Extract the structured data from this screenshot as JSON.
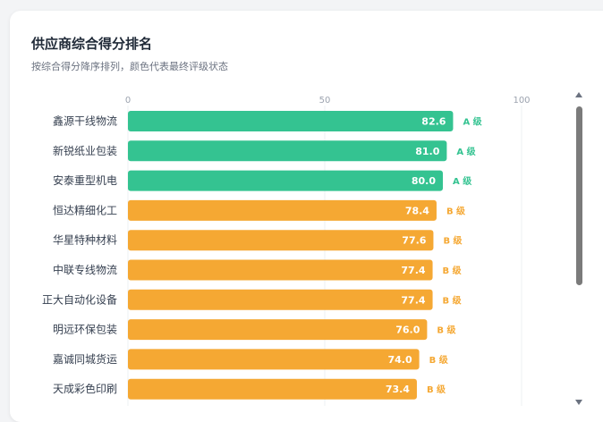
{
  "card": {
    "title": "供应商综合得分排名",
    "subtitle": "按综合得分降序排列，颜色代表最终评级状态"
  },
  "colors": {
    "A": "#34c391",
    "B": "#f5a833",
    "grid": "#eef0f3",
    "tick": "#9ca3af",
    "label": "#374151"
  },
  "chart_data": {
    "type": "bar",
    "orientation": "horizontal",
    "title": "供应商综合得分排名",
    "subtitle": "按综合得分降序排列，颜色代表最终评级状态",
    "xlim": [
      0,
      100
    ],
    "xticks": [
      0,
      50,
      100
    ],
    "grid": true,
    "categories": [
      "鑫源干线物流",
      "新锐纸业包装",
      "安泰重型机电",
      "恒达精细化工",
      "华星特种材料",
      "中联专线物流",
      "正大自动化设备",
      "明远环保包装",
      "嘉诚同城货运",
      "天成彩色印刷"
    ],
    "values": [
      82.6,
      81.0,
      80.0,
      78.4,
      77.6,
      77.4,
      77.4,
      76.0,
      74.0,
      73.4
    ],
    "grades": [
      "A 级",
      "A 级",
      "A 级",
      "B 级",
      "B 级",
      "B 级",
      "B 级",
      "B 级",
      "B 级",
      "B 级"
    ],
    "grade_keys": [
      "A",
      "A",
      "A",
      "B",
      "B",
      "B",
      "B",
      "B",
      "B",
      "B"
    ]
  }
}
